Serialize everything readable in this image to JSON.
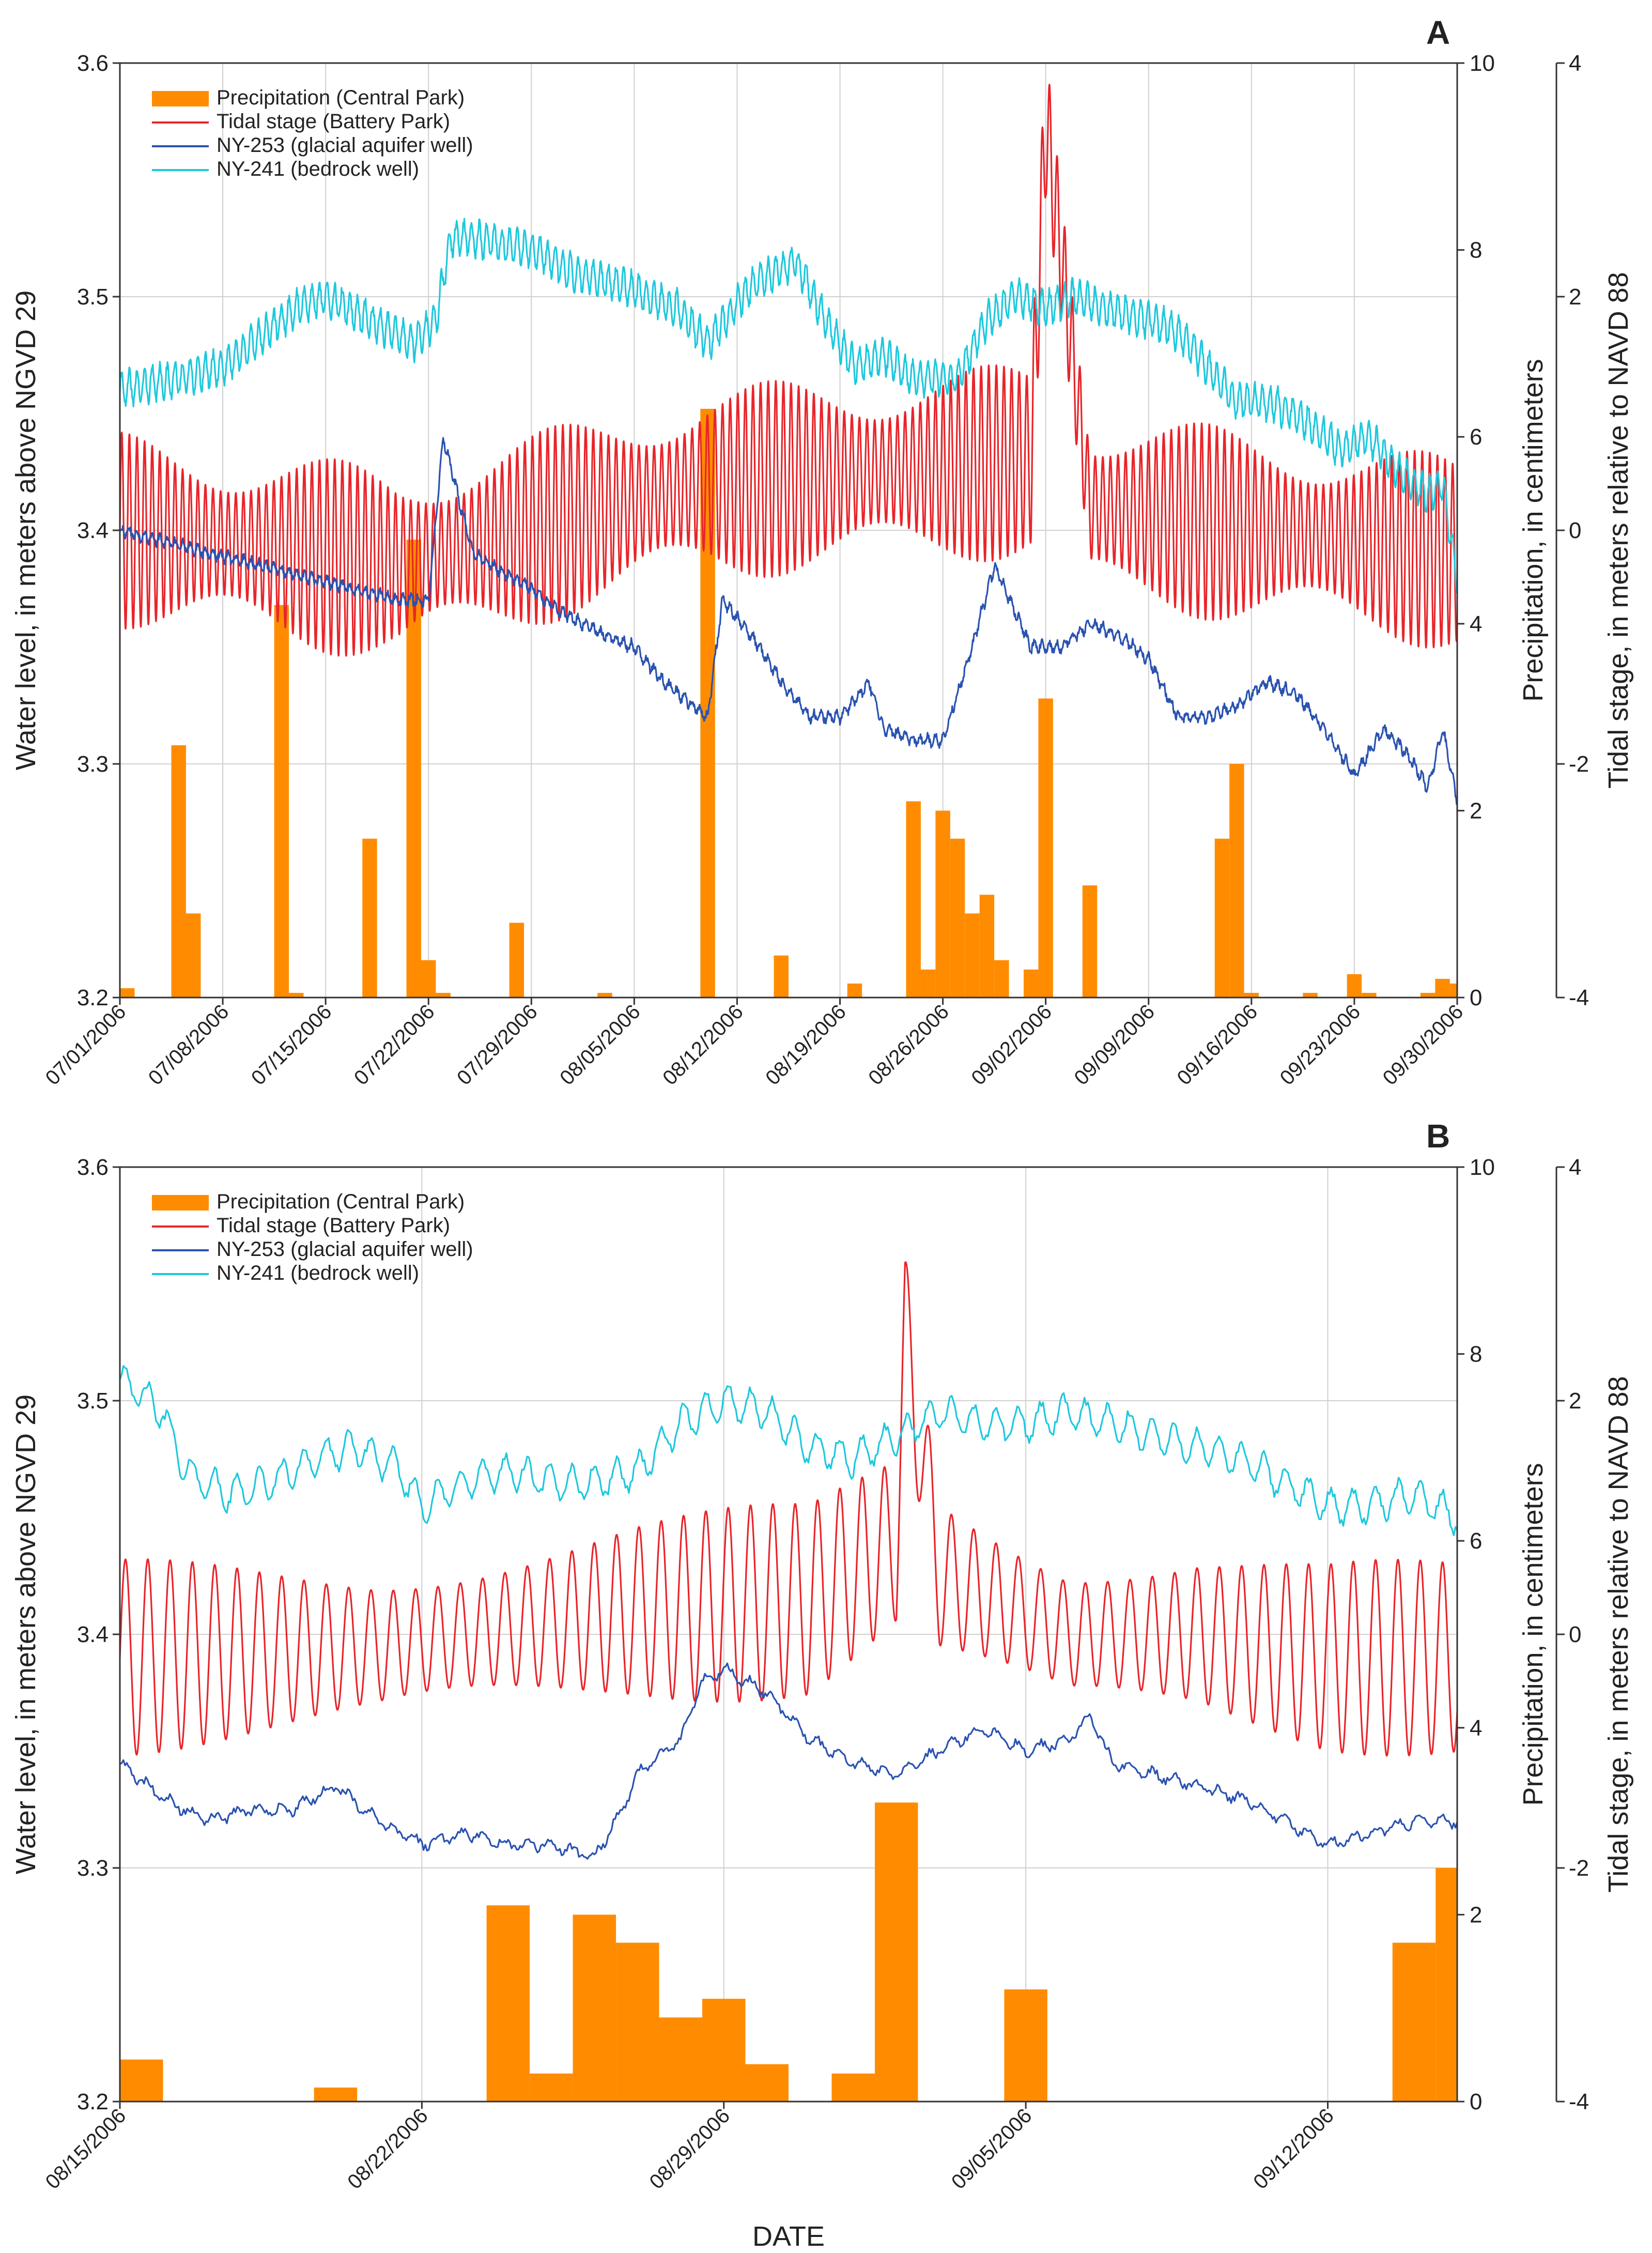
{
  "chart_data": [
    {
      "panel_label": "A",
      "type": "line",
      "ylabel_left": "Water level, in meters above NGVD 29",
      "ylabel_right_precip": "Precipitation, in centimeters",
      "ylabel_right_tide": "Tidal stage, in meters relative to NAVD 88",
      "xlabel": "",
      "x_range_days": [
        0,
        91
      ],
      "ylim_water": [
        3.2,
        3.6
      ],
      "ylim_precip": [
        0,
        10
      ],
      "ylim_tide": [
        -4,
        4
      ],
      "grid": true,
      "legend_position": "top-left",
      "yticks_water": [
        "3.2",
        "3.3",
        "3.4",
        "3.5",
        "3.6"
      ],
      "yticks_precip": [
        "0",
        "2",
        "4",
        "6",
        "8",
        "10"
      ],
      "yticks_tide": [
        "-4",
        "-2",
        "0",
        "2",
        "4"
      ],
      "x_ticks": [
        {
          "day": 0,
          "label": "07/01/2006"
        },
        {
          "day": 7,
          "label": "07/08/2006"
        },
        {
          "day": 14,
          "label": "07/15/2006"
        },
        {
          "day": 21,
          "label": "07/22/2006"
        },
        {
          "day": 28,
          "label": "07/29/2006"
        },
        {
          "day": 35,
          "label": "08/05/2006"
        },
        {
          "day": 42,
          "label": "08/12/2006"
        },
        {
          "day": 49,
          "label": "08/19/2006"
        },
        {
          "day": 56,
          "label": "08/26/2006"
        },
        {
          "day": 63,
          "label": "09/02/2006"
        },
        {
          "day": 70,
          "label": "09/09/2006"
        },
        {
          "day": 77,
          "label": "09/16/2006"
        },
        {
          "day": 84,
          "label": "09/23/2006"
        },
        {
          "day": 91,
          "label": "09/30/2006"
        }
      ],
      "legend": [
        {
          "label": "Precipitation (Central Park)",
          "kind": "bar",
          "color": "#FF8C00"
        },
        {
          "label": "Tidal stage (Battery Park)",
          "kind": "line",
          "color": "#E8252A"
        },
        {
          "label": "NY-253 (glacial aquifer well)",
          "kind": "line",
          "color": "#2A52B0"
        },
        {
          "label": "NY-241 (bedrock well)",
          "kind": "line",
          "color": "#1EC8DD"
        }
      ],
      "series": [
        {
          "name": "Precipitation (Central Park)",
          "type": "bar",
          "units": "cm",
          "bar_width_days": 1,
          "data": [
            [
              0,
              0.1
            ],
            [
              3.5,
              2.7
            ],
            [
              4.5,
              0.9
            ],
            [
              10.5,
              4.2
            ],
            [
              11.5,
              0.05
            ],
            [
              16.5,
              1.7
            ],
            [
              19.5,
              4.9
            ],
            [
              20.5,
              0.4
            ],
            [
              21.5,
              0.05
            ],
            [
              26.5,
              0.8
            ],
            [
              32.5,
              0.05
            ],
            [
              39.5,
              6.3
            ],
            [
              44.5,
              0.45
            ],
            [
              49.5,
              0.15
            ],
            [
              53.5,
              2.1
            ],
            [
              54.5,
              0.3
            ],
            [
              55.5,
              2.0
            ],
            [
              56.5,
              1.7
            ],
            [
              57.5,
              0.9
            ],
            [
              58.5,
              1.1
            ],
            [
              59.5,
              0.4
            ],
            [
              61.5,
              0.3
            ],
            [
              62.5,
              3.2
            ],
            [
              65.5,
              1.2
            ],
            [
              74.5,
              1.7
            ],
            [
              75.5,
              2.5
            ],
            [
              76.5,
              0.05
            ],
            [
              80.5,
              0.05
            ],
            [
              83.5,
              0.25
            ],
            [
              84.5,
              0.05
            ],
            [
              88.5,
              0.05
            ],
            [
              89.5,
              0.2
            ],
            [
              90.5,
              0.15
            ]
          ]
        },
        {
          "name": "Tidal stage (Battery Park)",
          "type": "line",
          "axis": "tide",
          "tide_amplitude_m": 0.8,
          "data": [
            [
              0,
              0
            ],
            [
              19,
              -0.3
            ],
            [
              40,
              0.4
            ],
            [
              62,
              0.6
            ],
            [
              63,
              3.5
            ],
            [
              66,
              0.2
            ],
            [
              91,
              -0.2
            ]
          ]
        },
        {
          "name": "NY-253 (glacial aquifer well)",
          "type": "line",
          "axis": "water",
          "data": [
            [
              0,
              3.4
            ],
            [
              19,
              3.37
            ],
            [
              21,
              3.37
            ],
            [
              22,
              3.44
            ],
            [
              24,
              3.39
            ],
            [
              28,
              3.375
            ],
            [
              30,
              3.365
            ],
            [
              33,
              3.355
            ],
            [
              35,
              3.35
            ],
            [
              37,
              3.335
            ],
            [
              40,
              3.32
            ],
            [
              41,
              3.37
            ],
            [
              43,
              3.355
            ],
            [
              45,
              3.335
            ],
            [
              47,
              3.32
            ],
            [
              49,
              3.32
            ],
            [
              51,
              3.335
            ],
            [
              52,
              3.315
            ],
            [
              54,
              3.31
            ],
            [
              56,
              3.31
            ],
            [
              58,
              3.35
            ],
            [
              59.5,
              3.385
            ],
            [
              62,
              3.35
            ],
            [
              64,
              3.35
            ],
            [
              66,
              3.36
            ],
            [
              68,
              3.355
            ],
            [
              70,
              3.345
            ],
            [
              72,
              3.32
            ],
            [
              74,
              3.32
            ],
            [
              76,
              3.325
            ],
            [
              78,
              3.335
            ],
            [
              80,
              3.33
            ],
            [
              82,
              3.315
            ],
            [
              84,
              3.295
            ],
            [
              86,
              3.315
            ],
            [
              87.5,
              3.305
            ],
            [
              89,
              3.29
            ],
            [
              90,
              3.315
            ],
            [
              91,
              3.285
            ]
          ]
        },
        {
          "name": "NY-241 (bedrock well)",
          "type": "line",
          "axis": "water",
          "data": [
            [
              0,
              3.46
            ],
            [
              4,
              3.465
            ],
            [
              7,
              3.47
            ],
            [
              10,
              3.485
            ],
            [
              12,
              3.495
            ],
            [
              14,
              3.5
            ],
            [
              17,
              3.49
            ],
            [
              20,
              3.48
            ],
            [
              21.5,
              3.49
            ],
            [
              22.5,
              3.525
            ],
            [
              24,
              3.525
            ],
            [
              28,
              3.52
            ],
            [
              31,
              3.51
            ],
            [
              34,
              3.505
            ],
            [
              36,
              3.5
            ],
            [
              38,
              3.495
            ],
            [
              40,
              3.48
            ],
            [
              43,
              3.505
            ],
            [
              46,
              3.515
            ],
            [
              48,
              3.49
            ],
            [
              50,
              3.47
            ],
            [
              52,
              3.475
            ],
            [
              54,
              3.465
            ],
            [
              57,
              3.465
            ],
            [
              59,
              3.49
            ],
            [
              61,
              3.5
            ],
            [
              63,
              3.495
            ],
            [
              65,
              3.5
            ],
            [
              67,
              3.495
            ],
            [
              70,
              3.49
            ],
            [
              72,
              3.485
            ],
            [
              74,
              3.47
            ],
            [
              76,
              3.455
            ],
            [
              78,
              3.455
            ],
            [
              80,
              3.45
            ],
            [
              82,
              3.44
            ],
            [
              83,
              3.435
            ],
            [
              85,
              3.44
            ],
            [
              87,
              3.425
            ],
            [
              89,
              3.415
            ],
            [
              90,
              3.42
            ],
            [
              91,
              3.38
            ]
          ]
        }
      ]
    },
    {
      "panel_label": "B",
      "type": "line",
      "ylabel_left": "Water level, in meters above NGVD 29",
      "ylabel_right_precip": "Precipitation, in centimeters",
      "ylabel_right_tide": "Tidal stage, in meters relative to NAVD 88",
      "xlabel": "DATE",
      "x_range_days": [
        0,
        31
      ],
      "ylim_water": [
        3.2,
        3.6
      ],
      "ylim_precip": [
        0,
        10
      ],
      "ylim_tide": [
        -4,
        4
      ],
      "grid": true,
      "legend_position": "top-left",
      "yticks_water": [
        "3.2",
        "3.3",
        "3.4",
        "3.5",
        "3.6"
      ],
      "yticks_precip": [
        "0",
        "2",
        "4",
        "6",
        "8",
        "10"
      ],
      "yticks_tide": [
        "-4",
        "-2",
        "0",
        "2",
        "4"
      ],
      "x_ticks": [
        {
          "day": 0,
          "label": "08/15/2006"
        },
        {
          "day": 7,
          "label": "08/22/2006"
        },
        {
          "day": 14,
          "label": "08/29/2006"
        },
        {
          "day": 21,
          "label": "09/05/2006"
        },
        {
          "day": 28,
          "label": "09/12/2006"
        }
      ],
      "legend": [
        {
          "label": "Precipitation (Central Park)",
          "kind": "bar",
          "color": "#FF8C00"
        },
        {
          "label": "Tidal stage (Battery Park)",
          "kind": "line",
          "color": "#E8252A"
        },
        {
          "label": "NY-253 (glacial aquifer well)",
          "kind": "line",
          "color": "#2A52B0"
        },
        {
          "label": "NY-241 (bedrock well)",
          "kind": "line",
          "color": "#1EC8DD"
        }
      ],
      "series": [
        {
          "name": "Precipitation (Central Park)",
          "type": "bar",
          "units": "cm",
          "bar_width_days": 1,
          "data": [
            [
              0,
              0.45
            ],
            [
              4.5,
              0.15
            ],
            [
              8.5,
              2.1
            ],
            [
              9.5,
              0.3
            ],
            [
              10.5,
              2.0
            ],
            [
              11.5,
              1.7
            ],
            [
              12.5,
              0.9
            ],
            [
              13.5,
              1.1
            ],
            [
              14.5,
              0.4
            ],
            [
              16.5,
              0.3
            ],
            [
              17.5,
              3.2
            ],
            [
              20.5,
              1.2
            ],
            [
              29.5,
              1.7
            ],
            [
              30.5,
              2.5
            ]
          ]
        },
        {
          "name": "Tidal stage (Battery Park)",
          "type": "line",
          "axis": "tide",
          "tide_amplitude_m": 0.8,
          "data": [
            [
              0,
              -0.2
            ],
            [
              6,
              -0.1
            ],
            [
              12,
              0.2
            ],
            [
              16,
              0.3
            ],
            [
              18,
              0.8
            ],
            [
              18.2,
              2.6
            ],
            [
              19,
              0.5
            ],
            [
              22,
              0
            ],
            [
              25,
              0
            ],
            [
              28,
              -0.2
            ],
            [
              31,
              -0.2
            ]
          ]
        },
        {
          "name": "NY-253 (glacial aquifer well)",
          "type": "line",
          "axis": "water",
          "data": [
            [
              0,
              3.345
            ],
            [
              1,
              3.33
            ],
            [
              2,
              3.32
            ],
            [
              3,
              3.325
            ],
            [
              4,
              3.325
            ],
            [
              5,
              3.335
            ],
            [
              6,
              3.32
            ],
            [
              7,
              3.31
            ],
            [
              8,
              3.315
            ],
            [
              9,
              3.31
            ],
            [
              10,
              3.31
            ],
            [
              11,
              3.305
            ],
            [
              11.5,
              3.32
            ],
            [
              12,
              3.34
            ],
            [
              13,
              3.355
            ],
            [
              13.5,
              3.38
            ],
            [
              14,
              3.385
            ],
            [
              15,
              3.375
            ],
            [
              16,
              3.355
            ],
            [
              17,
              3.345
            ],
            [
              18,
              3.34
            ],
            [
              19,
              3.35
            ],
            [
              20,
              3.36
            ],
            [
              21,
              3.35
            ],
            [
              22,
              3.355
            ],
            [
              22.5,
              3.365
            ],
            [
              23,
              3.345
            ],
            [
              24,
              3.34
            ],
            [
              25,
              3.335
            ],
            [
              26,
              3.33
            ],
            [
              27,
              3.32
            ],
            [
              28,
              3.31
            ],
            [
              29,
              3.315
            ],
            [
              30,
              3.32
            ],
            [
              31,
              3.32
            ]
          ]
        },
        {
          "name": "NY-241 (bedrock well)",
          "type": "line",
          "axis": "water",
          "data": [
            [
              0,
              3.51
            ],
            [
              1,
              3.495
            ],
            [
              1.5,
              3.47
            ],
            [
              2.5,
              3.46
            ],
            [
              3.5,
              3.465
            ],
            [
              4.5,
              3.475
            ],
            [
              5.5,
              3.48
            ],
            [
              6.5,
              3.47
            ],
            [
              7,
              3.455
            ],
            [
              8,
              3.465
            ],
            [
              9,
              3.47
            ],
            [
              10,
              3.465
            ],
            [
              11,
              3.465
            ],
            [
              12,
              3.47
            ],
            [
              13,
              3.49
            ],
            [
              14,
              3.5
            ],
            [
              15,
              3.495
            ],
            [
              16,
              3.48
            ],
            [
              17,
              3.475
            ],
            [
              18,
              3.485
            ],
            [
              19,
              3.495
            ],
            [
              20,
              3.49
            ],
            [
              21,
              3.49
            ],
            [
              22,
              3.495
            ],
            [
              23,
              3.49
            ],
            [
              24,
              3.485
            ],
            [
              25,
              3.48
            ],
            [
              26,
              3.475
            ],
            [
              27,
              3.465
            ],
            [
              28,
              3.455
            ],
            [
              29,
              3.455
            ],
            [
              30,
              3.46
            ],
            [
              31,
              3.45
            ]
          ]
        }
      ]
    }
  ]
}
